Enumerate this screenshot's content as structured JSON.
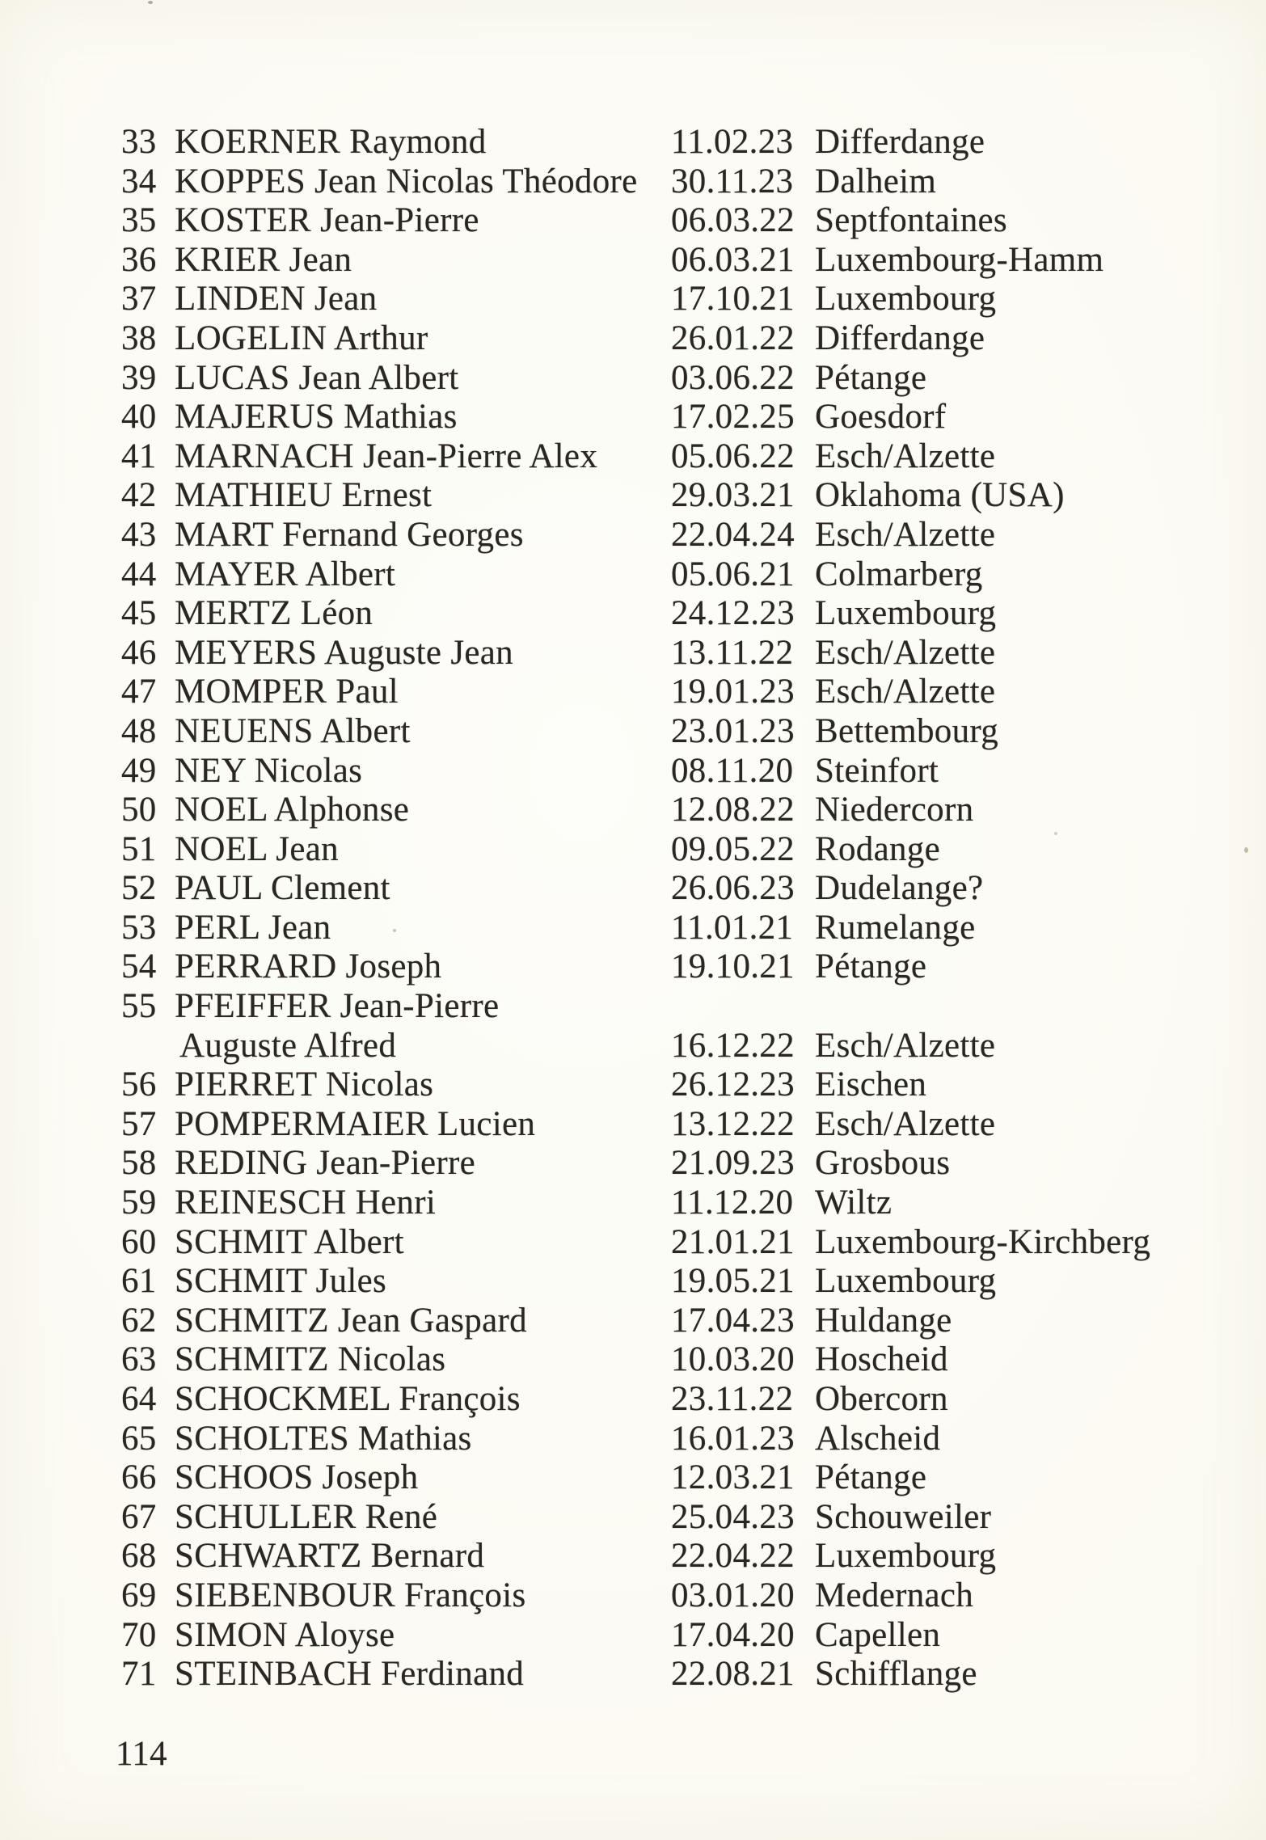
{
  "page": {
    "page_number": "114",
    "colors": {
      "paper": "#fbf9f1",
      "ink": "#2a2722"
    }
  },
  "register": {
    "lines": [
      {
        "num": "33",
        "name": "KOERNER Raymond",
        "date": "11.02.23",
        "place": "Differdange"
      },
      {
        "num": "34",
        "name": "KOPPES Jean Nicolas Théodore",
        "date": "30.11.23",
        "place": "Dalheim"
      },
      {
        "num": "35",
        "name": "KOSTER Jean-Pierre",
        "date": "06.03.22",
        "place": "Septfontaines"
      },
      {
        "num": "36",
        "name": "KRIER Jean",
        "date": "06.03.21",
        "place": "Luxembourg-Hamm"
      },
      {
        "num": "37",
        "name": "LINDEN Jean",
        "date": "17.10.21",
        "place": "Luxembourg"
      },
      {
        "num": "38",
        "name": "LOGELIN Arthur",
        "date": "26.01.22",
        "place": "Differdange"
      },
      {
        "num": "39",
        "name": "LUCAS Jean Albert",
        "date": "03.06.22",
        "place": "Pétange"
      },
      {
        "num": "40",
        "name": "MAJERUS Mathias",
        "date": "17.02.25",
        "place": "Goesdorf"
      },
      {
        "num": "41",
        "name": "MARNACH Jean-Pierre Alex",
        "date": "05.06.22",
        "place": "Esch/Alzette"
      },
      {
        "num": "42",
        "name": "MATHIEU Ernest",
        "date": "29.03.21",
        "place": "Oklahoma (USA)"
      },
      {
        "num": "43",
        "name": "MART Fernand Georges",
        "date": "22.04.24",
        "place": "Esch/Alzette"
      },
      {
        "num": "44",
        "name": "MAYER Albert",
        "date": "05.06.21",
        "place": "Colmarberg"
      },
      {
        "num": "45",
        "name": "MERTZ Léon",
        "date": "24.12.23",
        "place": "Luxembourg"
      },
      {
        "num": "46",
        "name": "MEYERS Auguste Jean",
        "date": "13.11.22",
        "place": "Esch/Alzette"
      },
      {
        "num": "47",
        "name": "MOMPER Paul",
        "date": "19.01.23",
        "place": "Esch/Alzette"
      },
      {
        "num": "48",
        "name": "NEUENS Albert",
        "date": "23.01.23",
        "place": "Bettembourg"
      },
      {
        "num": "49",
        "name": "NEY Nicolas",
        "date": "08.11.20",
        "place": "Steinfort"
      },
      {
        "num": "50",
        "name": "NOEL Alphonse",
        "date": "12.08.22",
        "place": "Niedercorn"
      },
      {
        "num": "51",
        "name": "NOEL Jean",
        "date": "09.05.22",
        "place": "Rodange"
      },
      {
        "num": "52",
        "name": "PAUL Clement",
        "date": "26.06.23",
        "place": "Dudelange?"
      },
      {
        "num": "53",
        "name": "PERL Jean",
        "date": "11.01.21",
        "place": "Rumelange"
      },
      {
        "num": "54",
        "name": "PERRARD Joseph",
        "date": "19.10.21",
        "place": "Pétange"
      },
      {
        "num": "55",
        "name": "PFEIFFER Jean-Pierre",
        "date": "",
        "place": ""
      },
      {
        "num": "",
        "name": "Auguste Alfred",
        "date": "16.12.22",
        "place": "Esch/Alzette"
      },
      {
        "num": "56",
        "name": "PIERRET Nicolas",
        "date": "26.12.23",
        "place": "Eischen"
      },
      {
        "num": "57",
        "name": "POMPERMAIER Lucien",
        "date": "13.12.22",
        "place": "Esch/Alzette"
      },
      {
        "num": "58",
        "name": "REDING Jean-Pierre",
        "date": "21.09.23",
        "place": "Grosbous"
      },
      {
        "num": "59",
        "name": "REINESCH Henri",
        "date": "11.12.20",
        "place": "Wiltz"
      },
      {
        "num": "60",
        "name": "SCHMIT Albert",
        "date": "21.01.21",
        "place": "Luxembourg-Kirchberg"
      },
      {
        "num": "61",
        "name": "SCHMIT Jules",
        "date": "19.05.21",
        "place": "Luxembourg"
      },
      {
        "num": "62",
        "name": "SCHMITZ Jean Gaspard",
        "date": "17.04.23",
        "place": "Huldange"
      },
      {
        "num": "63",
        "name": "SCHMITZ Nicolas",
        "date": "10.03.20",
        "place": "Hoscheid"
      },
      {
        "num": "64",
        "name": "SCHOCKMEL François",
        "date": "23.11.22",
        "place": "Obercorn"
      },
      {
        "num": "65",
        "name": "SCHOLTES Mathias",
        "date": "16.01.23",
        "place": "Alscheid"
      },
      {
        "num": "66",
        "name": "SCHOOS Joseph",
        "date": "12.03.21",
        "place": "Pétange"
      },
      {
        "num": "67",
        "name": "SCHULLER René",
        "date": "25.04.23",
        "place": "Schouweiler"
      },
      {
        "num": "68",
        "name": "SCHWARTZ Bernard",
        "date": "22.04.22",
        "place": "Luxembourg"
      },
      {
        "num": "69",
        "name": "SIEBENBOUR François",
        "date": "03.01.20",
        "place": "Medernach"
      },
      {
        "num": "70",
        "name": "SIMON Aloyse",
        "date": "17.04.20",
        "place": "Capellen"
      },
      {
        "num": "71",
        "name": "STEINBACH Ferdinand",
        "date": "22.08.21",
        "place": "Schifflange"
      }
    ]
  }
}
